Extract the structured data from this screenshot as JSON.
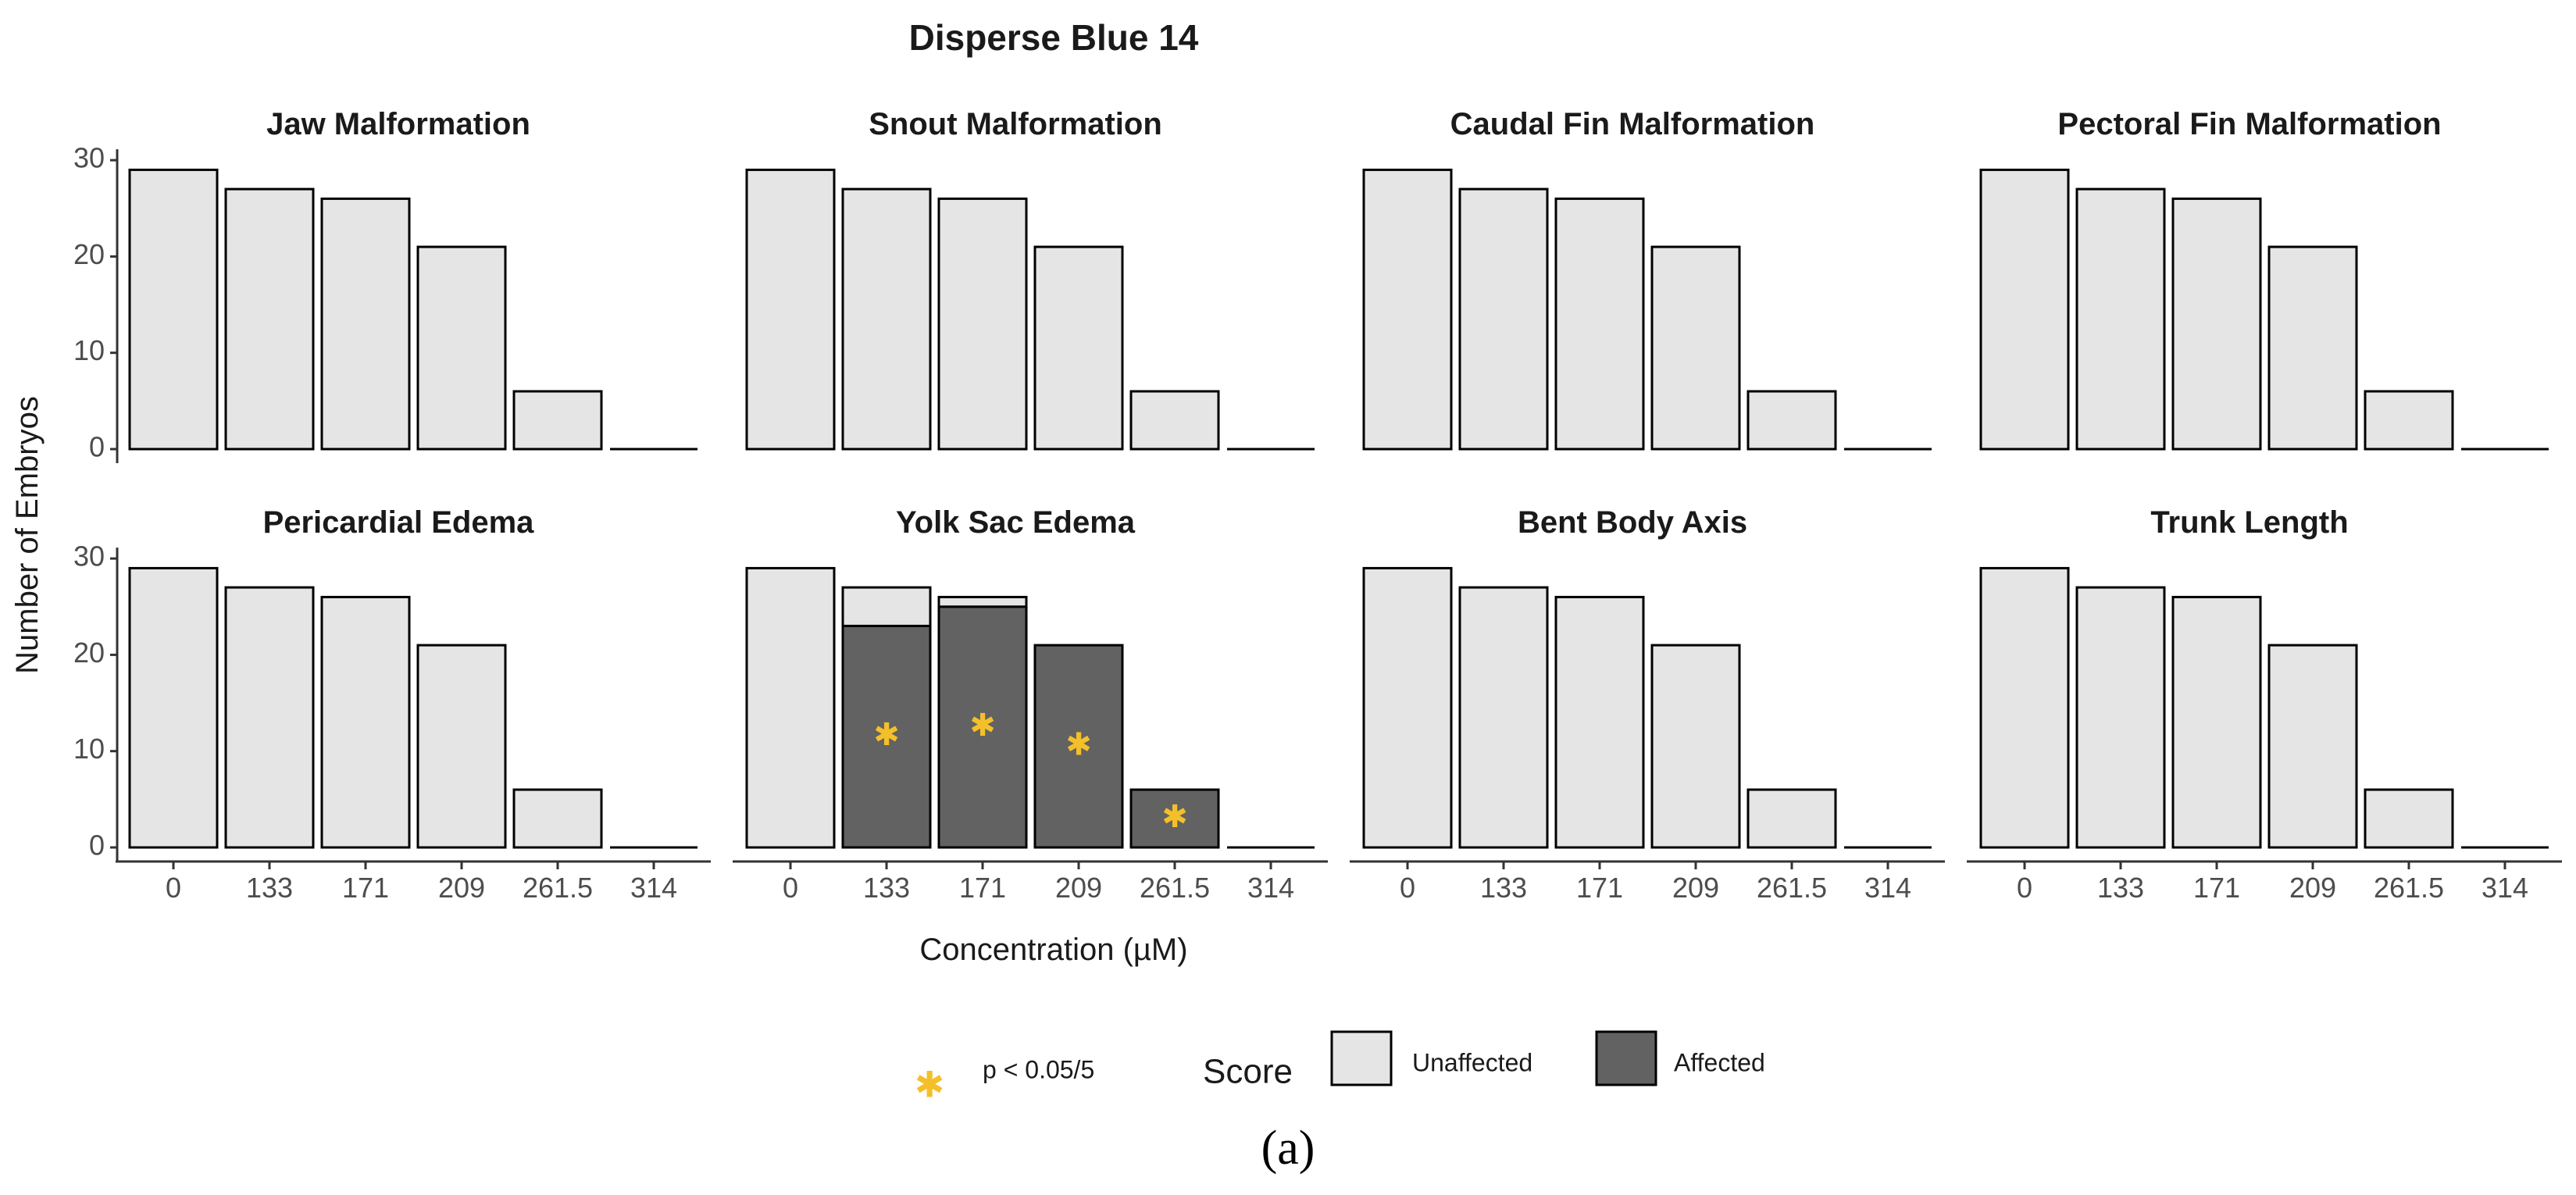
{
  "figure": {
    "title": "Disperse Blue 14",
    "caption": "(a)"
  },
  "chart_data": {
    "type": "bar",
    "layout": "2x4 facet grid, stacked bars",
    "xlabel": "Concentration (µM)",
    "ylabel": "Number of Embryos",
    "ylim": [
      0,
      30
    ],
    "yticks": [
      0,
      10,
      20,
      30
    ],
    "categories": [
      "0",
      "133",
      "171",
      "209",
      "261.5",
      "314"
    ],
    "panels": [
      {
        "title": "Jaw Malformation",
        "totals": [
          29,
          27,
          26,
          21,
          6,
          0
        ],
        "affected": [
          0,
          0,
          0,
          0,
          0,
          0
        ],
        "significant": [
          false,
          false,
          false,
          false,
          false,
          false
        ]
      },
      {
        "title": "Snout Malformation",
        "totals": [
          29,
          27,
          26,
          21,
          6,
          0
        ],
        "affected": [
          0,
          0,
          0,
          0,
          0,
          0
        ],
        "significant": [
          false,
          false,
          false,
          false,
          false,
          false
        ]
      },
      {
        "title": "Caudal Fin Malformation",
        "totals": [
          29,
          27,
          26,
          21,
          6,
          0
        ],
        "affected": [
          0,
          0,
          0,
          0,
          0,
          0
        ],
        "significant": [
          false,
          false,
          false,
          false,
          false,
          false
        ]
      },
      {
        "title": "Pectoral Fin Malformation",
        "totals": [
          29,
          27,
          26,
          21,
          6,
          0
        ],
        "affected": [
          0,
          0,
          0,
          0,
          0,
          0
        ],
        "significant": [
          false,
          false,
          false,
          false,
          false,
          false
        ]
      },
      {
        "title": "Pericardial Edema",
        "totals": [
          29,
          27,
          26,
          21,
          6,
          0
        ],
        "affected": [
          0,
          0,
          0,
          0,
          0,
          0
        ],
        "significant": [
          false,
          false,
          false,
          false,
          false,
          false
        ]
      },
      {
        "title": "Yolk Sac Edema",
        "totals": [
          29,
          27,
          26,
          21,
          6,
          0
        ],
        "affected": [
          0,
          23,
          25,
          21,
          6,
          0
        ],
        "significant": [
          false,
          true,
          true,
          true,
          true,
          false
        ]
      },
      {
        "title": "Bent Body Axis",
        "totals": [
          29,
          27,
          26,
          21,
          6,
          0
        ],
        "affected": [
          0,
          0,
          0,
          0,
          0,
          0
        ],
        "significant": [
          false,
          false,
          false,
          false,
          false,
          false
        ]
      },
      {
        "title": "Trunk Length",
        "totals": [
          29,
          27,
          26,
          21,
          6,
          0
        ],
        "affected": [
          0,
          0,
          0,
          0,
          0,
          0
        ],
        "significant": [
          false,
          false,
          false,
          false,
          false,
          false
        ]
      }
    ],
    "legend": {
      "significance_label": "p < 0.05/5",
      "score_title": "Score",
      "unaffected_label": "Unaffected",
      "affected_label": "Affected",
      "position": "bottom"
    },
    "colors": {
      "unaffected": "#e5e5e5",
      "affected": "#626262",
      "outline": "#000000",
      "star": "#f4c02a",
      "axis": "#333333"
    }
  }
}
